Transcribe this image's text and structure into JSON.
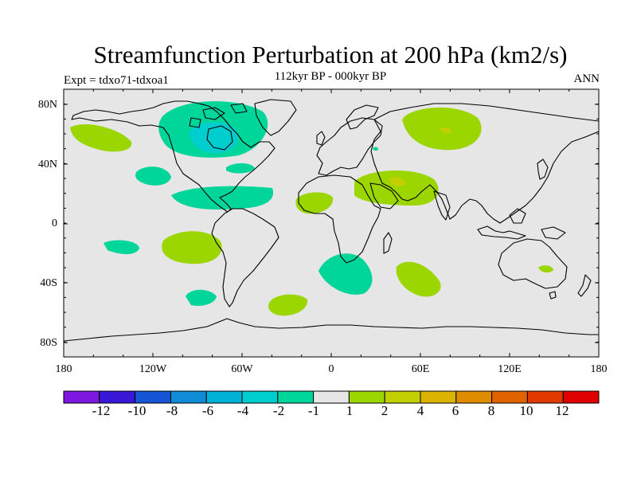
{
  "header": {
    "title": "Streamfunction Perturbation at 200 hPa (km2/s)",
    "subtitle": "112kyr BP - 000kyr BP",
    "left_label": "Expt = tdxo71-tdxoa1",
    "right_label": "ANN"
  },
  "map": {
    "projection": "cylindrical equidistant",
    "background_color": "#e6e6e6",
    "lat_tick_labels": [
      "80N",
      "40N",
      "0",
      "40S",
      "80S"
    ],
    "lon_tick_labels": [
      "180",
      "120W",
      "60W",
      "0",
      "60E",
      "120E",
      "180"
    ],
    "anomaly_regions": [
      {
        "name": "north-america-arctic-low",
        "sign": "negative",
        "level": "-2 to -1",
        "color": "#00d59a"
      },
      {
        "name": "canada-low-core",
        "sign": "negative",
        "level": "-4 to -2",
        "color": "#00cdcd"
      },
      {
        "name": "alaska-high",
        "sign": "positive",
        "level": "1 to 2",
        "color": "#9bd600"
      },
      {
        "name": "siberia-high",
        "sign": "positive",
        "level": "1 to 2",
        "color": "#9bd600"
      },
      {
        "name": "middle-east-high",
        "sign": "positive",
        "level": "1 to 2",
        "color": "#9bd600"
      },
      {
        "name": "south-pacific-high",
        "sign": "positive",
        "level": "1 to 2",
        "color": "#9bd600"
      },
      {
        "name": "south-atlantic-low",
        "sign": "negative",
        "level": "-2 to -1",
        "color": "#00d59a"
      },
      {
        "name": "indian-ocean-high",
        "sign": "positive",
        "level": "1 to 2",
        "color": "#9bd600"
      }
    ]
  },
  "colorbar": {
    "colors": [
      "#7d18e0",
      "#3a18d8",
      "#1655d6",
      "#108bd8",
      "#00b2d8",
      "#00cdcd",
      "#00d59a",
      "#e6e6e6",
      "#9bd600",
      "#c2cf00",
      "#dcb400",
      "#e08c00",
      "#e06300",
      "#e03a00",
      "#e00000"
    ],
    "labels": [
      "-12",
      "-10",
      "-8",
      "-6",
      "-4",
      "-2",
      "-1",
      "1",
      "2",
      "4",
      "6",
      "8",
      "10",
      "12"
    ]
  }
}
